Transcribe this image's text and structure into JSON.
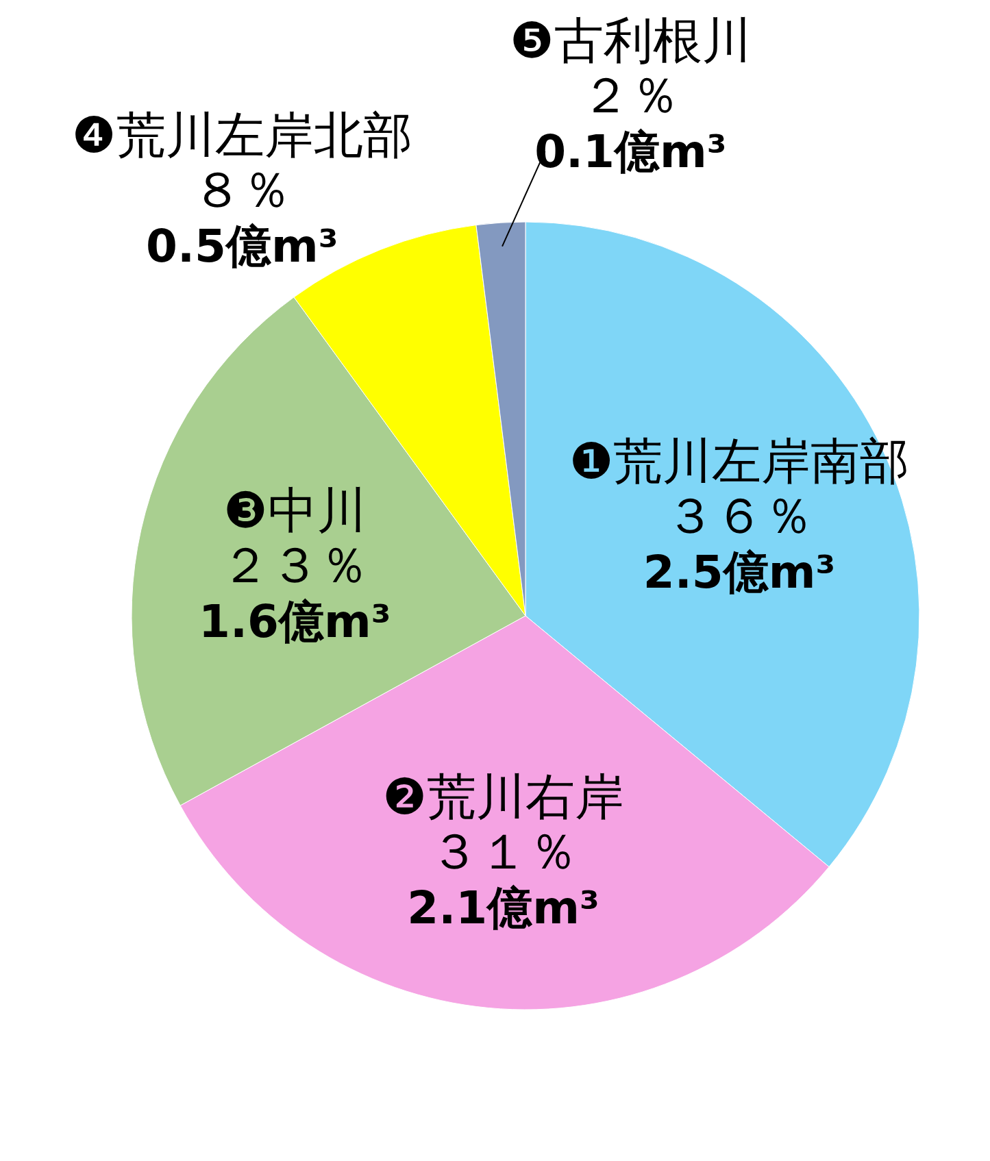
{
  "chart_data": {
    "type": "pie",
    "categories": [
      "❶荒川左岸南部",
      "❷荒川右岸",
      "❸中川",
      "❹荒川左岸北部",
      "❺古利根川"
    ],
    "values": [
      36,
      31,
      23,
      8,
      2
    ],
    "colors": [
      "#7fd6f7",
      "#f5a3e3",
      "#a9cf90",
      "#ffff00",
      "#8399c0"
    ],
    "value_labels": [
      "３６％\n2.5億m³",
      "３１％\n2.1億m³",
      "２３％\n1.6億m³",
      "８％\n0.5億m³",
      "２％\n0.1億m³"
    ]
  }
}
